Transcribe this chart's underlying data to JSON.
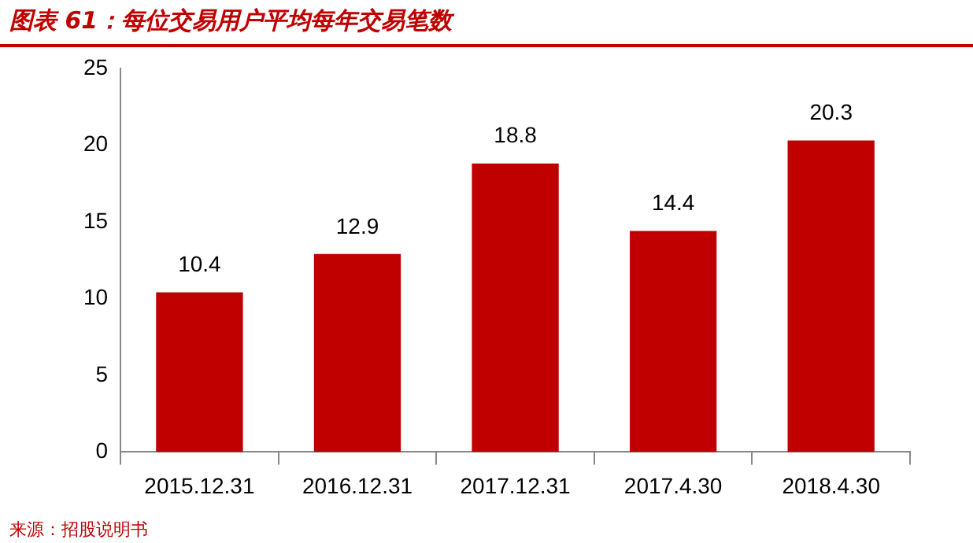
{
  "chart_data": {
    "type": "bar",
    "title": "图表 61：每位交易用户平均每年交易笔数",
    "categories": [
      "2015.12.31",
      "2016.12.31",
      "2017.12.31",
      "2017.4.30",
      "2018.4.30"
    ],
    "values": [
      10.4,
      12.9,
      18.8,
      14.4,
      20.3
    ],
    "color": "#c00000",
    "ylim": [
      0,
      25
    ],
    "yticks": [
      0,
      5,
      10,
      15,
      20,
      25
    ],
    "grid": false,
    "data_labels": true,
    "legend": false,
    "annotations": [
      "来源：招股说明书"
    ]
  }
}
